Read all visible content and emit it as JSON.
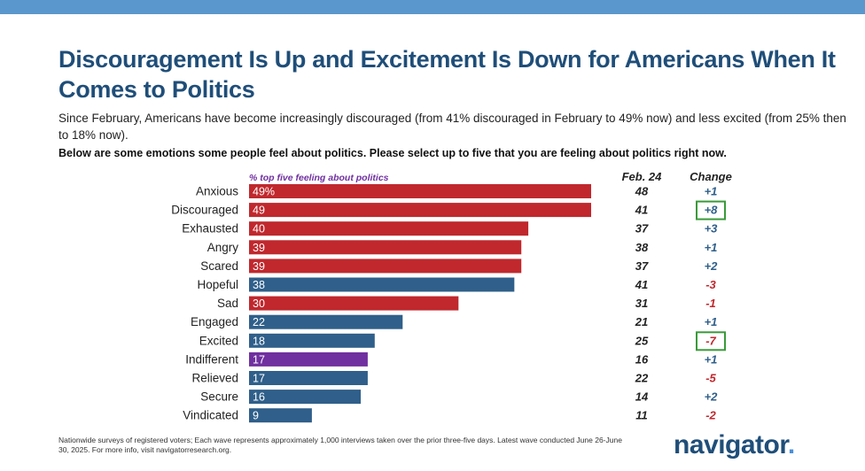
{
  "title": "Discouragement Is Up and Excitement Is Down for Americans When It Comes to Politics",
  "subtitle": "Since February, Americans have become increasingly discouraged (from 41% discouraged in February to 49% now) and less excited (from 25% then to 18% now).",
  "question": "Below are some emotions some people feel about politics. Please select up to five that you are feeling about politics right now.",
  "footnote": "Nationwide surveys of registered voters; Each wave represents approximately 1,000 interviews taken over the prior three-five days. Latest wave conducted June 26-June 30, 2025. For more info, visit navigatorresearch.org.",
  "logo": {
    "text": "navigator",
    "dot": "."
  },
  "colors": {
    "negative": "#c0282d",
    "positive": "#2f5f8a",
    "neutral": "#7030a0",
    "change_up": "#2f5f8a",
    "change_down": "#c0282d",
    "highlight_box": "#3a9a3a"
  },
  "chart_data": {
    "type": "bar",
    "orientation": "horizontal",
    "series_label": "% top five feeling about politics",
    "feb_header": "Feb. 24",
    "change_header": "Change",
    "categories": [
      "Anxious",
      "Discouraged",
      "Exhausted",
      "Angry",
      "Scared",
      "Hopeful",
      "Sad",
      "Engaged",
      "Excited",
      "Indifferent",
      "Relieved",
      "Secure",
      "Vindicated"
    ],
    "values": [
      49,
      49,
      40,
      39,
      39,
      38,
      30,
      22,
      18,
      17,
      17,
      16,
      9
    ],
    "value_labels": [
      "49%",
      "49",
      "40",
      "39",
      "39",
      "38",
      "30",
      "22",
      "18",
      "17",
      "17",
      "16",
      "9"
    ],
    "bar_color_group": [
      "negative",
      "negative",
      "negative",
      "negative",
      "negative",
      "positive",
      "negative",
      "positive",
      "positive",
      "neutral",
      "positive",
      "positive",
      "positive"
    ],
    "feb_24": [
      48,
      41,
      37,
      38,
      37,
      41,
      31,
      21,
      25,
      16,
      22,
      14,
      11
    ],
    "change": [
      "+1",
      "+8",
      "+3",
      "+1",
      "+2",
      "-3",
      "-1",
      "+1",
      "-7",
      "+1",
      "-5",
      "+2",
      "-2"
    ],
    "change_highlighted": [
      false,
      true,
      false,
      false,
      false,
      false,
      false,
      false,
      true,
      false,
      false,
      false,
      false
    ],
    "xlim": [
      0,
      49
    ]
  }
}
